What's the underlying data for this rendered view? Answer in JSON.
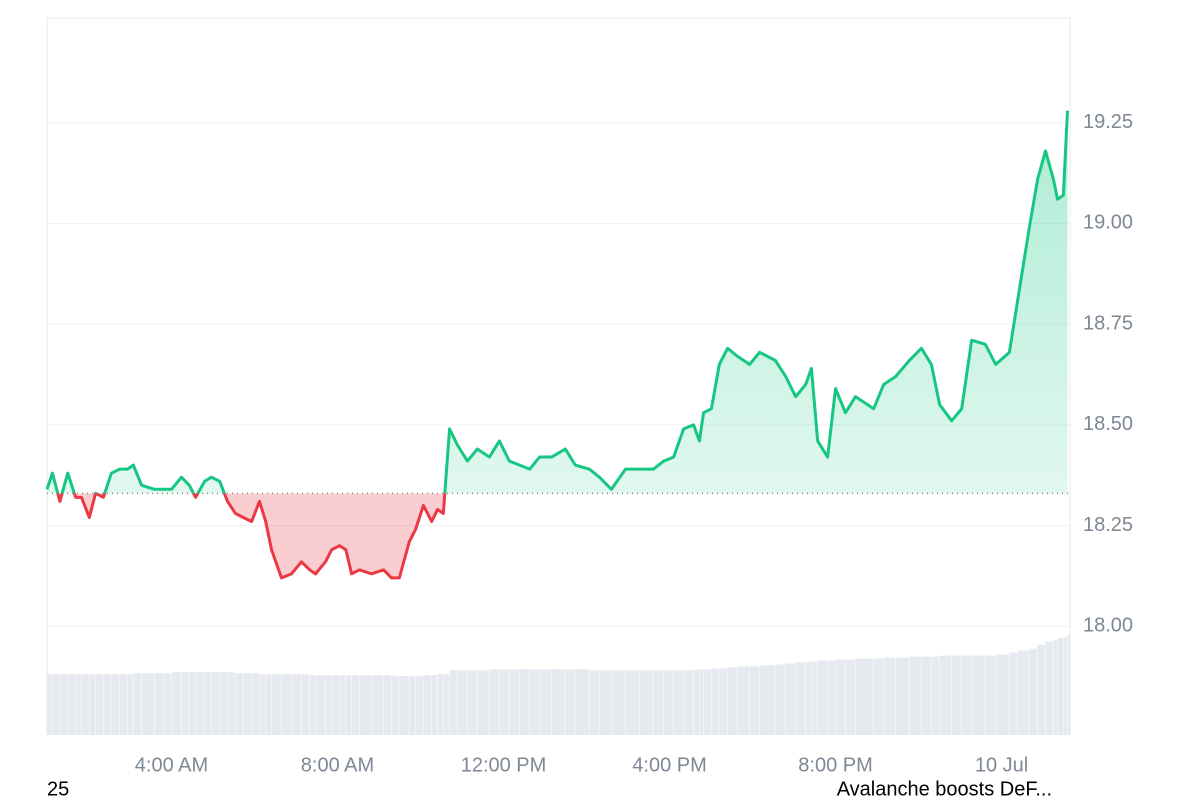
{
  "chart_data": {
    "type": "baseline-area",
    "x": [
      1.0,
      1.13,
      1.31,
      1.5,
      1.69,
      1.83,
      2.02,
      2.17,
      2.36,
      2.55,
      2.75,
      2.94,
      3.08,
      3.28,
      3.59,
      3.83,
      4.0,
      4.24,
      4.43,
      4.58,
      4.8,
      4.96,
      5.16,
      5.35,
      5.54,
      5.73,
      5.93,
      6.12,
      6.27,
      6.41,
      6.65,
      6.89,
      7.13,
      7.33,
      7.47,
      7.71,
      7.86,
      8.05,
      8.2,
      8.34,
      8.53,
      8.82,
      9.11,
      9.3,
      9.49,
      9.73,
      9.88,
      10.07,
      10.27,
      10.41,
      10.55,
      10.7,
      10.89,
      11.13,
      11.37,
      11.66,
      11.9,
      12.14,
      12.39,
      12.63,
      12.87,
      13.16,
      13.49,
      13.73,
      14.07,
      14.31,
      14.6,
      14.94,
      15.28,
      15.61,
      15.86,
      16.1,
      16.34,
      16.58,
      16.72,
      16.82,
      17.01,
      17.2,
      17.4,
      17.64,
      17.93,
      18.17,
      18.55,
      18.8,
      19.04,
      19.28,
      19.42,
      19.57,
      19.81,
      20.0,
      20.24,
      20.48,
      20.92,
      21.16,
      21.45,
      21.78,
      22.07,
      22.31,
      22.51,
      22.8,
      23.04,
      23.28,
      23.61,
      23.86,
      24.19,
      24.39,
      24.67,
      24.87,
      25.06,
      25.25,
      25.35,
      25.49,
      25.59
    ],
    "values": [
      18.34,
      18.38,
      18.31,
      18.38,
      18.32,
      18.32,
      18.27,
      18.33,
      18.32,
      18.38,
      18.39,
      18.39,
      18.4,
      18.35,
      18.34,
      18.34,
      18.34,
      18.37,
      18.35,
      18.32,
      18.36,
      18.37,
      18.36,
      18.31,
      18.28,
      18.27,
      18.26,
      18.31,
      18.26,
      18.19,
      18.12,
      18.13,
      18.16,
      18.14,
      18.13,
      18.16,
      18.19,
      18.2,
      18.19,
      18.13,
      18.14,
      18.13,
      18.14,
      18.12,
      18.12,
      18.21,
      18.24,
      18.3,
      18.26,
      18.29,
      18.28,
      18.49,
      18.45,
      18.41,
      18.44,
      18.42,
      18.46,
      18.41,
      18.4,
      18.39,
      18.42,
      18.42,
      18.44,
      18.4,
      18.39,
      18.37,
      18.34,
      18.39,
      18.39,
      18.39,
      18.41,
      18.42,
      18.49,
      18.5,
      18.46,
      18.53,
      18.54,
      18.65,
      18.69,
      18.67,
      18.65,
      18.68,
      18.66,
      18.62,
      18.57,
      18.6,
      18.64,
      18.46,
      18.42,
      18.59,
      18.53,
      18.57,
      18.54,
      18.6,
      18.62,
      18.66,
      18.69,
      18.65,
      18.55,
      18.51,
      18.54,
      18.71,
      18.7,
      18.65,
      18.68,
      18.81,
      18.99,
      19.11,
      19.18,
      19.11,
      19.06,
      19.07,
      19.28
    ],
    "volume": [
      62,
      62,
      62,
      62,
      62,
      62,
      62,
      62,
      62,
      62,
      62,
      62,
      63,
      63,
      63,
      63,
      64,
      64,
      64,
      64,
      64,
      64,
      64,
      64,
      63,
      63,
      63,
      62,
      62,
      62,
      62,
      62,
      62,
      61,
      61,
      61,
      61,
      61,
      61,
      61,
      61,
      61,
      61,
      60,
      60,
      60,
      60,
      61,
      61,
      62,
      62,
      66,
      66,
      66,
      66,
      67,
      67,
      67,
      67,
      67,
      67,
      67,
      67,
      67,
      66,
      66,
      66,
      66,
      66,
      66,
      66,
      66,
      66,
      67,
      67,
      67,
      68,
      68,
      69,
      70,
      70,
      71,
      72,
      73,
      74,
      75,
      75,
      76,
      76,
      77,
      77,
      78,
      78,
      79,
      79,
      80,
      80,
      80,
      81,
      81,
      81,
      81,
      81,
      82,
      84,
      86,
      88,
      92,
      95,
      97,
      99,
      100,
      102
    ],
    "baseline": 18.33,
    "xlim": [
      1.0,
      25.65
    ],
    "ylim": [
      17.73,
      19.51
    ],
    "xticks": [
      {
        "value": 4,
        "label": "4:00 AM"
      },
      {
        "value": 8,
        "label": "8:00 AM"
      },
      {
        "value": 12,
        "label": "12:00 PM"
      },
      {
        "value": 16,
        "label": "4:00 PM"
      },
      {
        "value": 20,
        "label": "8:00 PM"
      },
      {
        "value": 24,
        "label": "10 Jul"
      }
    ],
    "yticks": [
      {
        "value": 18,
        "label": "18.00"
      },
      18.25,
      {
        "value": 18.5,
        "label": "18.50"
      },
      18.75,
      {
        "value": 19,
        "label": "19.00"
      },
      19.25
    ],
    "grid": true,
    "up_color": "#16c784",
    "down_color": "#ea3943",
    "volume_color": "#e6e9ef",
    "annotations": [
      "25",
      "Avalanche boosts DeF..."
    ]
  }
}
